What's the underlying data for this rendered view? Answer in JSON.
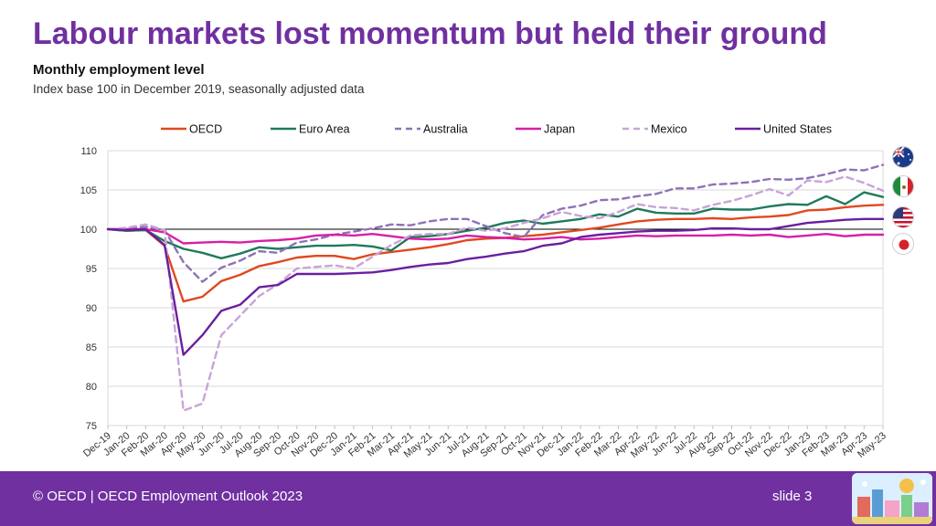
{
  "header": {
    "title": "Labour markets lost momentum but held their ground",
    "subtitle": "Monthly employment level",
    "description": "Index base 100 in December 2019, seasonally adjusted data"
  },
  "footer": {
    "copyright": "© OECD | OECD Employment Outlook 2023",
    "slide": "slide 3"
  },
  "colors": {
    "brand": "#7030a0",
    "oecd": "#e0491f",
    "euro_area": "#1f7a5a",
    "australia": "#8e72b8",
    "japan": "#d61fa8",
    "mexico": "#c9a4d6",
    "united_states": "#6a1fa0"
  },
  "flags": [
    "australia-flag-icon",
    "mexico-flag-icon",
    "united-states-flag-icon",
    "japan-flag-icon"
  ],
  "chart_data": {
    "type": "line",
    "title": "Monthly employment level",
    "xlabel": "",
    "ylabel": "",
    "ylim": [
      75,
      110
    ],
    "yticks": [
      75,
      80,
      85,
      90,
      95,
      100,
      105,
      110
    ],
    "reference_line": 100,
    "legend_position": "top",
    "categories": [
      "Dec-19",
      "Jan-20",
      "Feb-20",
      "Mar-20",
      "Apr-20",
      "May-20",
      "Jun-20",
      "Jul-20",
      "Aug-20",
      "Sep-20",
      "Oct-20",
      "Nov-20",
      "Dec-20",
      "Jan-21",
      "Feb-21",
      "Mar-21",
      "Apr-21",
      "May-21",
      "Jun-21",
      "Jul-21",
      "Aug-21",
      "Sep-21",
      "Oct-21",
      "Nov-21",
      "Dec-21",
      "Jan-22",
      "Feb-22",
      "Mar-22",
      "Apr-22",
      "May-22",
      "Jun-22",
      "Jul-22",
      "Aug-22",
      "Sep-22",
      "Oct-22",
      "Nov-22",
      "Dec-22",
      "Jan-23",
      "Feb-23",
      "Mar-23",
      "Apr-23",
      "May-23"
    ],
    "series": [
      {
        "name": "OECD",
        "color": "#e0491f",
        "dash": false,
        "values": [
          100,
          99.8,
          99.9,
          97.9,
          90.8,
          91.4,
          93.4,
          94.2,
          95.3,
          95.8,
          96.4,
          96.6,
          96.6,
          96.2,
          96.8,
          97.1,
          97.4,
          97.7,
          98.1,
          98.6,
          98.8,
          98.9,
          99.1,
          99.3,
          99.6,
          99.9,
          100.2,
          100.6,
          101.0,
          101.2,
          101.3,
          101.3,
          101.4,
          101.3,
          101.5,
          101.6,
          101.8,
          102.4,
          102.5,
          102.8,
          103.0,
          103.1
        ]
      },
      {
        "name": "Euro Area",
        "color": "#1f7a5a",
        "dash": false,
        "values": [
          100,
          99.8,
          99.9,
          98.5,
          97.5,
          97.0,
          96.3,
          96.9,
          97.7,
          97.5,
          97.7,
          97.9,
          97.9,
          98.0,
          97.8,
          97.3,
          99.0,
          99.1,
          99.4,
          99.8,
          100.2,
          100.8,
          101.1,
          100.7,
          101.0,
          101.3,
          101.9,
          101.6,
          102.6,
          102.1,
          102.0,
          102.0,
          102.6,
          102.5,
          102.5,
          102.9,
          103.2,
          103.1,
          104.2,
          103.2,
          104.7,
          104.1
        ]
      },
      {
        "name": "Australia",
        "color": "#8e72b8",
        "dash": true,
        "values": [
          100,
          100.1,
          100.3,
          99.9,
          95.8,
          93.3,
          95.1,
          96.0,
          97.2,
          97.0,
          98.3,
          98.7,
          99.3,
          99.7,
          100.1,
          100.6,
          100.5,
          101.0,
          101.3,
          101.3,
          100.4,
          99.5,
          99.0,
          101.8,
          102.6,
          103.0,
          103.7,
          103.8,
          104.2,
          104.5,
          105.2,
          105.2,
          105.7,
          105.8,
          106.0,
          106.4,
          106.3,
          106.5,
          107.0,
          107.6,
          107.5,
          108.2
        ]
      },
      {
        "name": "Japan",
        "color": "#d61fa8",
        "dash": false,
        "values": [
          100,
          100,
          100,
          99.6,
          98.2,
          98.3,
          98.4,
          98.3,
          98.5,
          98.6,
          98.8,
          99.2,
          99.3,
          99.2,
          99.4,
          99.1,
          98.8,
          98.7,
          98.8,
          99.2,
          99.0,
          98.9,
          98.7,
          98.8,
          99.0,
          98.7,
          98.8,
          99.0,
          99.2,
          99.1,
          99.2,
          99.2,
          99.2,
          99.3,
          99.2,
          99.3,
          99.0,
          99.2,
          99.4,
          99.1,
          99.3,
          99.3
        ]
      },
      {
        "name": "Mexico",
        "color": "#c9a4d6",
        "dash": true,
        "values": [
          100,
          100.2,
          100.6,
          99.9,
          76.9,
          77.8,
          86.5,
          89.0,
          91.5,
          93.0,
          95.0,
          95.2,
          95.4,
          95.0,
          96.5,
          98.0,
          99.2,
          99.4,
          99.4,
          100.2,
          99.8,
          100.1,
          100.8,
          101.4,
          102.2,
          101.7,
          101.4,
          102.2,
          103.2,
          102.8,
          102.7,
          102.4,
          103.1,
          103.6,
          104.3,
          105.1,
          104.3,
          106.2,
          106.0,
          106.7,
          105.9,
          104.9
        ]
      },
      {
        "name": "United States",
        "color": "#6a1fa0",
        "dash": false,
        "values": [
          100,
          99.9,
          100.0,
          98.0,
          84.0,
          86.5,
          89.6,
          90.4,
          92.6,
          92.9,
          94.3,
          94.3,
          94.3,
          94.4,
          94.5,
          94.8,
          95.2,
          95.5,
          95.7,
          96.2,
          96.5,
          96.9,
          97.2,
          97.9,
          98.2,
          99.0,
          99.3,
          99.5,
          99.7,
          99.8,
          99.8,
          99.9,
          100.1,
          100.1,
          100.0,
          100.0,
          100.4,
          100.8,
          101.0,
          101.2,
          101.3,
          101.3
        ]
      }
    ]
  }
}
